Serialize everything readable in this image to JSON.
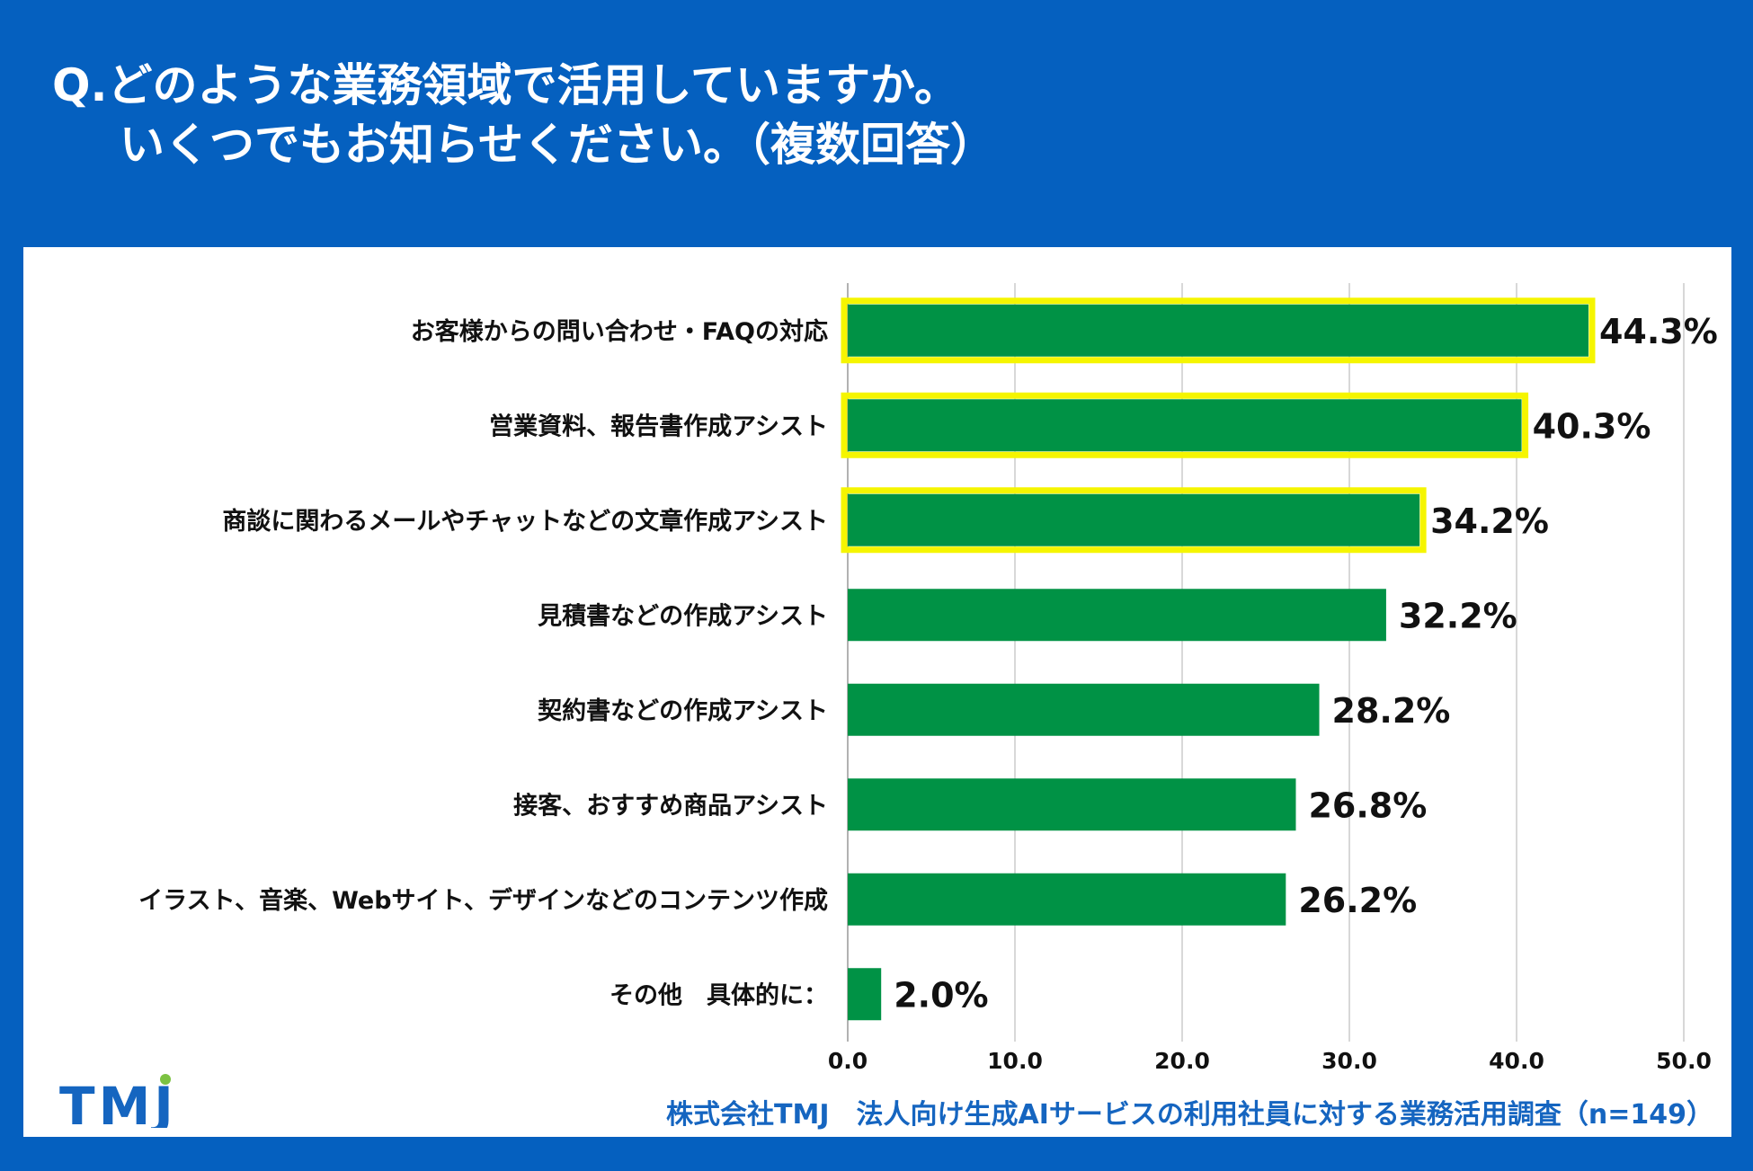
{
  "title": {
    "line1": "Q.どのような業務領域で活用していますか。",
    "line2": "いくつでもお知らせください。（複数回答）"
  },
  "chart_data": {
    "type": "bar",
    "orientation": "horizontal",
    "categories": [
      "お客様からの問い合わせ・FAQの対応",
      "営業資料、報告書作成アシスト",
      "商談に関わるメールやチャットなどの文章作成アシスト",
      "見積書などの作成アシスト",
      "契約書などの作成アシスト",
      "接客、おすすめ商品アシスト",
      "イラスト、音楽、Webサイト、デザインなどのコンテンツ作成",
      "その他　具体的に："
    ],
    "values": [
      44.3,
      40.3,
      34.2,
      32.2,
      28.2,
      26.8,
      26.2,
      2.0
    ],
    "value_labels": [
      "44.3%",
      "40.3%",
      "34.2%",
      "32.2%",
      "28.2%",
      "26.8%",
      "26.2%",
      "2.0%"
    ],
    "highlighted": [
      true,
      true,
      true,
      false,
      false,
      false,
      false,
      false
    ],
    "xlim": [
      0,
      50
    ],
    "xticks": [
      "0.0",
      "10.0",
      "20.0",
      "30.0",
      "40.0",
      "50.0"
    ],
    "xlabel": "",
    "ylabel": "",
    "grid": true,
    "bar_color": "#009245",
    "highlight_color": "#f5f500"
  },
  "logo": {
    "text": "TMJ",
    "color": "#1565c0",
    "accent": "#7cc242"
  },
  "source": "株式会社TMJ　法人向け生成AIサービスの利用社員に対する業務活用調査（n=149）",
  "colors": {
    "background": "#0560bf",
    "panel": "#ffffff",
    "grid": "#cccccc"
  }
}
